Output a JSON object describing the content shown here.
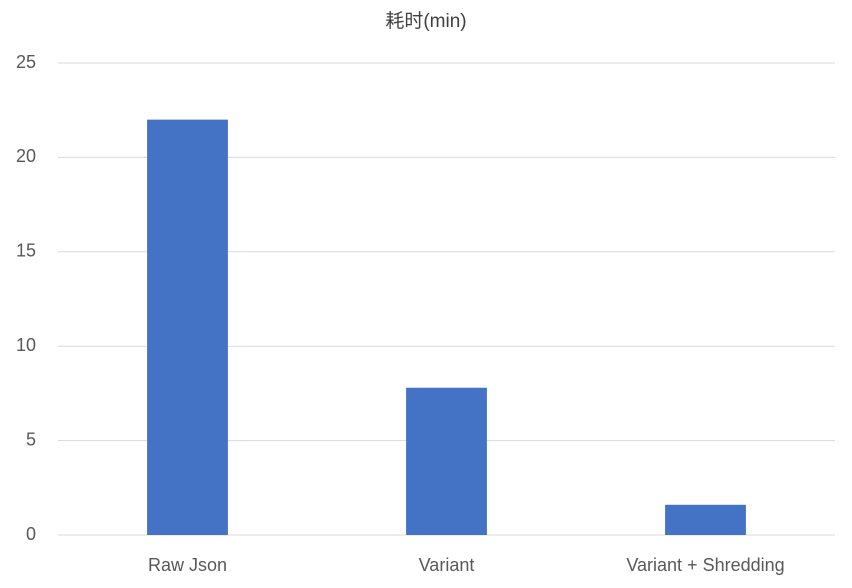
{
  "chart_data": {
    "type": "bar",
    "title": "耗时(min)",
    "categories": [
      "Raw Json",
      "Variant",
      "Variant + Shredding"
    ],
    "values": [
      22,
      7.8,
      1.6
    ],
    "color": "#4472c4",
    "ylim": [
      0,
      25
    ],
    "yticks": [
      0,
      5,
      10,
      15,
      20,
      25
    ],
    "grid": true
  }
}
